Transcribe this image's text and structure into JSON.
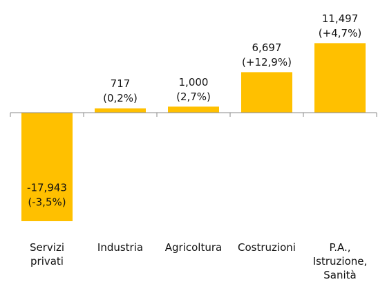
{
  "chart_data": {
    "type": "bar",
    "categories": [
      "Servizi privati",
      "Industria",
      "Agricoltura",
      "Costruzioni",
      "P.A., Istruzione, Sanità"
    ],
    "values": [
      -17943,
      717,
      1000,
      6697,
      11497
    ],
    "value_labels": [
      "-17,943",
      "717",
      "1,000",
      "6,697",
      "11,497"
    ],
    "change_labels": [
      "(-3,5%)",
      "(0,2%)",
      "(2,7%)",
      "(+12,9%)",
      "(+4,7%)"
    ],
    "color": "#ffc000",
    "ylim": [
      -20000,
      12000
    ]
  }
}
